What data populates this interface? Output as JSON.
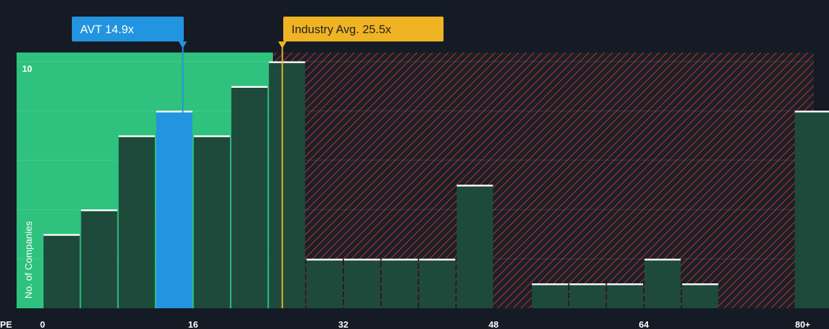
{
  "chart_data": {
    "type": "bar",
    "title": "",
    "xlabel": "PE",
    "ylabel": "No. of Companies",
    "x_tick_labels": [
      {
        "value": 0,
        "label": "0"
      },
      {
        "value": 16,
        "label": "16"
      },
      {
        "value": 32,
        "label": "32"
      },
      {
        "value": 48,
        "label": "48"
      },
      {
        "value": 64,
        "label": "64"
      },
      {
        "value": 80,
        "label": "80+"
      }
    ],
    "y_tick_labels": [
      {
        "value": 10,
        "label": "10"
      }
    ],
    "xlim": [
      0,
      82
    ],
    "ylim": [
      0,
      10.3
    ],
    "bin_width": 4,
    "bins": [
      {
        "start": 0,
        "count": 3
      },
      {
        "start": 4,
        "count": 4
      },
      {
        "start": 8,
        "count": 7
      },
      {
        "start": 12,
        "count": 8
      },
      {
        "start": 16,
        "count": 7
      },
      {
        "start": 20,
        "count": 9
      },
      {
        "start": 24,
        "count": 10
      },
      {
        "start": 28,
        "count": 2
      },
      {
        "start": 32,
        "count": 2
      },
      {
        "start": 36,
        "count": 2
      },
      {
        "start": 40,
        "count": 2
      },
      {
        "start": 44,
        "count": 5
      },
      {
        "start": 52,
        "count": 1
      },
      {
        "start": 56,
        "count": 1
      },
      {
        "start": 60,
        "count": 1
      },
      {
        "start": 64,
        "count": 2
      },
      {
        "start": 68,
        "count": 1
      },
      {
        "start": 80,
        "count": 8
      }
    ],
    "highlight_bin_start": 12,
    "fair_range": [
      0,
      24.5
    ],
    "company": {
      "label": "AVT 14.9x",
      "value": 14.9
    },
    "industry_avg": {
      "label": "Industry Avg. 25.5x",
      "value": 25.5
    },
    "colors": {
      "background": "#151b24",
      "fair_zone": "#2ec27e",
      "bar": "#1e4a3c",
      "highlight_bar": "#2394e0",
      "overvalued_hatch": "#c0392b",
      "bar_top": "#ffffff",
      "company_callout": "#2394e0",
      "industry_callout": "#f0b323"
    }
  }
}
